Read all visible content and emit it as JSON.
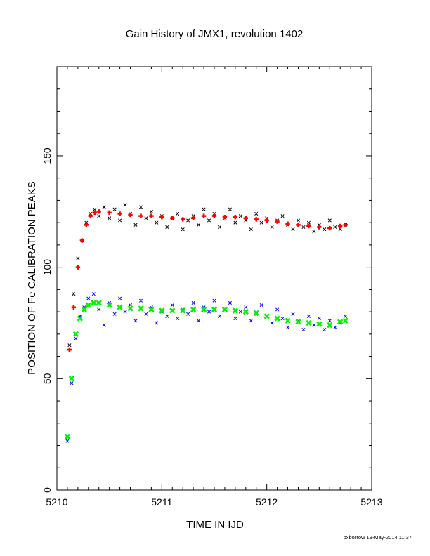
{
  "chart_data": {
    "type": "scatter",
    "title": "Gain History of JMX1, revolution 1402",
    "xlabel": "TIME IN IJD",
    "ylabel": "POSITION OF Fe CALIBRATION PEAKS",
    "xlim": [
      5210,
      5213
    ],
    "ylim": [
      0,
      190
    ],
    "xticks": [
      "5210",
      "5211",
      "5212",
      "5213"
    ],
    "yticks": [
      "0",
      "50",
      "100",
      "150"
    ],
    "grid": false,
    "series": [
      {
        "color": "#000000",
        "marker": "x",
        "x": [
          5210.12,
          5210.16,
          5210.2,
          5210.24,
          5210.28,
          5210.32,
          5210.36,
          5210.4,
          5210.45,
          5210.5,
          5210.55,
          5210.6,
          5210.65,
          5210.7,
          5210.75,
          5210.8,
          5210.85,
          5210.9,
          5210.95,
          5211.0,
          5211.05,
          5211.1,
          5211.15,
          5211.2,
          5211.25,
          5211.3,
          5211.35,
          5211.4,
          5211.45,
          5211.5,
          5211.55,
          5211.6,
          5211.65,
          5211.7,
          5211.75,
          5211.8,
          5211.85,
          5211.9,
          5211.95,
          5212.0,
          5212.05,
          5212.1,
          5212.15,
          5212.2,
          5212.25,
          5212.3,
          5212.35,
          5212.4,
          5212.45,
          5212.5,
          5212.55,
          5212.6,
          5212.65,
          5212.7,
          5212.75
        ],
        "y": [
          65,
          88,
          104,
          112,
          120,
          124,
          126,
          123,
          127,
          122,
          126,
          121,
          128,
          124,
          119,
          127,
          122,
          125,
          120,
          123,
          118,
          122,
          124,
          117,
          121,
          123,
          119,
          126,
          121,
          124,
          118,
          122,
          126,
          120,
          123,
          121,
          117,
          124,
          120,
          122,
          118,
          121,
          123,
          119,
          117,
          121,
          118,
          120,
          116,
          119,
          117,
          121,
          118,
          117,
          119
        ]
      },
      {
        "color": "#ff0000",
        "marker": "+",
        "x": [
          5210.12,
          5210.16,
          5210.2,
          5210.24,
          5210.28,
          5210.32,
          5210.36,
          5210.4,
          5210.5,
          5210.6,
          5210.7,
          5210.8,
          5210.9,
          5211.0,
          5211.1,
          5211.2,
          5211.3,
          5211.4,
          5211.5,
          5211.6,
          5211.7,
          5211.8,
          5211.9,
          5212.0,
          5212.1,
          5212.2,
          5212.3,
          5212.4,
          5212.5,
          5212.6,
          5212.7,
          5212.75
        ],
        "y": [
          63,
          82,
          100,
          112,
          119,
          123,
          124.5,
          125,
          124.5,
          124,
          123.5,
          123,
          123,
          122.5,
          122,
          121.5,
          122,
          123,
          123,
          122.5,
          122.5,
          122,
          121.5,
          121,
          120.5,
          119.5,
          119,
          118.5,
          118,
          117.5,
          118.5,
          119
        ]
      },
      {
        "color": "#0000ff",
        "marker": "x",
        "x": [
          5210.1,
          5210.14,
          5210.18,
          5210.22,
          5210.26,
          5210.3,
          5210.35,
          5210.4,
          5210.45,
          5210.5,
          5210.55,
          5210.6,
          5210.65,
          5210.7,
          5210.75,
          5210.8,
          5210.85,
          5210.9,
          5210.95,
          5211.0,
          5211.05,
          5211.1,
          5211.15,
          5211.2,
          5211.25,
          5211.3,
          5211.35,
          5211.4,
          5211.45,
          5211.5,
          5211.55,
          5211.6,
          5211.65,
          5211.7,
          5211.75,
          5211.8,
          5211.85,
          5211.9,
          5211.95,
          5212.0,
          5212.05,
          5212.1,
          5212.15,
          5212.2,
          5212.25,
          5212.3,
          5212.35,
          5212.4,
          5212.45,
          5212.5,
          5212.55,
          5212.6,
          5212.65,
          5212.7,
          5212.75
        ],
        "y": [
          22,
          48,
          68,
          78,
          82,
          86,
          88,
          81,
          74,
          84,
          79,
          86,
          80,
          83,
          76,
          85,
          79,
          82,
          75,
          80,
          78,
          83,
          77,
          81,
          79,
          84,
          76,
          82,
          80,
          85,
          78,
          81,
          84,
          77,
          80,
          82,
          76,
          79,
          83,
          78,
          75,
          81,
          77,
          73,
          79,
          76,
          72,
          78,
          74,
          77,
          72,
          76,
          73,
          75,
          78
        ]
      },
      {
        "color": "#00ee00",
        "marker": "x",
        "x": [
          5210.1,
          5210.14,
          5210.18,
          5210.22,
          5210.26,
          5210.3,
          5210.35,
          5210.4,
          5210.5,
          5210.6,
          5210.7,
          5210.8,
          5210.9,
          5211.0,
          5211.1,
          5211.2,
          5211.3,
          5211.4,
          5211.5,
          5211.6,
          5211.7,
          5211.8,
          5211.9,
          5212.0,
          5212.1,
          5212.2,
          5212.3,
          5212.4,
          5212.5,
          5212.6,
          5212.7,
          5212.75
        ],
        "y": [
          24,
          50,
          70,
          77,
          81,
          83,
          84,
          84,
          83,
          82,
          81.5,
          81.5,
          81,
          80.5,
          80.5,
          80.5,
          81,
          81,
          81,
          81,
          80.5,
          80,
          79.5,
          78,
          77,
          76,
          75.5,
          75,
          74.5,
          74,
          75.5,
          76
        ]
      }
    ]
  },
  "footer": {
    "credit": "oxborrow 19-May-2014 11:37"
  }
}
